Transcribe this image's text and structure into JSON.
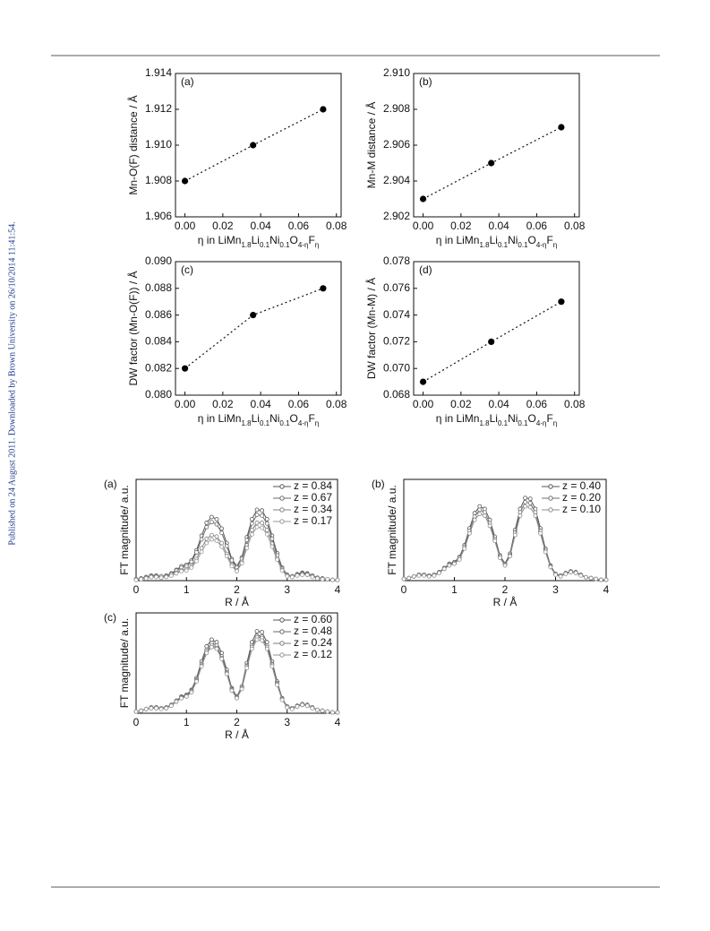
{
  "watermark": "Published on 24 August 2011. Downloaded by Brown University on 26/10/2014 11:41:54.",
  "chart_data": [
    {
      "type": "scatter",
      "panel_label": "(a)",
      "ylabel": "Mn-O(F) distance / Å",
      "xlabel": [
        "η in LiMn",
        "1.8",
        "Li",
        "0.1",
        "Ni",
        "0.1",
        "O",
        "4-η",
        "F",
        "η"
      ],
      "x": [
        0,
        0.036,
        0.073
      ],
      "series": [
        {
          "color": "#000000",
          "values": [
            1.908,
            1.91,
            1.912
          ]
        }
      ],
      "line": "dotted",
      "xlim": [
        -0.005,
        0.0825
      ],
      "xticks": [
        {
          "value": 0,
          "label": "0.00"
        },
        0.02,
        0.04,
        0.06,
        0.08
      ],
      "ylim": [
        1.906,
        1.914
      ],
      "yticks": [
        1.906,
        1.908,
        {
          "value": 1.91,
          "label": "1.910"
        },
        1.912,
        1.914
      ]
    },
    {
      "type": "scatter",
      "panel_label": "(b)",
      "ylabel": "Mn-M distance / Å",
      "xlabel": [
        "η in LiMn",
        "1.8",
        "Li",
        "0.1",
        "Ni",
        "0.1",
        "O",
        "4-η",
        "F",
        "η"
      ],
      "x": [
        0,
        0.036,
        0.073
      ],
      "series": [
        {
          "color": "#000000",
          "values": [
            2.903,
            2.905,
            2.907
          ]
        }
      ],
      "line": "dotted",
      "xlim": [
        -0.005,
        0.0825
      ],
      "xticks": [
        {
          "value": 0,
          "label": "0.00"
        },
        0.02,
        0.04,
        0.06,
        0.08
      ],
      "ylim": [
        2.902,
        2.91
      ],
      "yticks": [
        2.902,
        2.904,
        2.906,
        2.908,
        {
          "value": 2.91,
          "label": "2.910"
        }
      ]
    },
    {
      "type": "scatter",
      "panel_label": "(c)",
      "ylabel": "DW factor (Mn-O(F)) / Å",
      "xlabel": [
        "η in LiMn",
        "1.8",
        "Li",
        "0.1",
        "Ni",
        "0.1",
        "O",
        "4-η",
        "F",
        "η"
      ],
      "x": [
        0,
        0.036,
        0.073
      ],
      "series": [
        {
          "color": "#000000",
          "values": [
            0.082,
            0.086,
            0.088
          ]
        }
      ],
      "line": "dotted",
      "xlim": [
        -0.005,
        0.0825
      ],
      "xticks": [
        {
          "value": 0,
          "label": "0.00"
        },
        0.02,
        0.04,
        0.06,
        0.08
      ],
      "ylim": [
        0.08,
        0.09
      ],
      "yticks": [
        {
          "value": 0.08,
          "label": "0.080"
        },
        0.082,
        0.084,
        0.086,
        0.088,
        {
          "value": 0.09,
          "label": "0.090"
        }
      ]
    },
    {
      "type": "scatter",
      "panel_label": "(d)",
      "ylabel": "DW factor (Mn-M) / Å",
      "xlabel": [
        "η in LiMn",
        "1.8",
        "Li",
        "0.1",
        "Ni",
        "0.1",
        "O",
        "4-η",
        "F",
        "η"
      ],
      "x": [
        0,
        0.036,
        0.073
      ],
      "series": [
        {
          "color": "#000000",
          "values": [
            0.069,
            0.072,
            0.075
          ]
        }
      ],
      "line": "dotted",
      "xlim": [
        -0.005,
        0.0825
      ],
      "xticks": [
        {
          "value": 0,
          "label": "0.00"
        },
        0.02,
        0.04,
        0.06,
        0.08
      ],
      "ylim": [
        0.068,
        0.078
      ],
      "yticks": [
        0.068,
        {
          "value": 0.07,
          "label": "0.070"
        },
        0.072,
        0.074,
        0.076,
        0.078
      ]
    },
    {
      "type": "line",
      "panel_label": "(a)",
      "ylabel": "FT magnitude/ a.u.",
      "xlabel": "R / Å",
      "x": [
        0,
        0.1,
        0.2,
        0.3,
        0.4,
        0.5,
        0.6,
        0.7,
        0.8,
        0.9,
        1,
        1.1,
        1.2,
        1.3,
        1.4,
        1.5,
        1.6,
        1.7,
        1.8,
        1.9,
        2,
        2.1,
        2.2,
        2.3,
        2.4,
        2.5,
        2.6,
        2.7,
        2.8,
        2.9,
        3,
        3.1,
        3.2,
        3.3,
        3.4,
        3.5,
        3.6,
        3.7,
        3.8,
        3.9,
        4
      ],
      "xlim": [
        0,
        4
      ],
      "xticks": [
        0,
        1,
        2,
        3,
        4
      ],
      "ylim": [
        0,
        1.4
      ],
      "series": [
        {
          "name": "z = 0.84",
          "color": "#555555",
          "values": [
            0.02,
            0.03,
            0.05,
            0.07,
            0.07,
            0.06,
            0.07,
            0.1,
            0.15,
            0.2,
            0.22,
            0.28,
            0.42,
            0.62,
            0.8,
            0.88,
            0.85,
            0.72,
            0.52,
            0.3,
            0.2,
            0.32,
            0.6,
            0.85,
            0.98,
            0.97,
            0.85,
            0.62,
            0.38,
            0.18,
            0.08,
            0.06,
            0.09,
            0.11,
            0.1,
            0.07,
            0.04,
            0.03,
            0.02,
            0.01,
            0.01
          ]
        },
        {
          "name": "z = 0.67",
          "color": "#6a6a6a",
          "values": [
            0.02,
            0.03,
            0.05,
            0.06,
            0.06,
            0.06,
            0.06,
            0.09,
            0.14,
            0.18,
            0.2,
            0.26,
            0.39,
            0.57,
            0.74,
            0.81,
            0.78,
            0.66,
            0.48,
            0.28,
            0.18,
            0.3,
            0.56,
            0.79,
            0.91,
            0.9,
            0.79,
            0.58,
            0.35,
            0.17,
            0.07,
            0.06,
            0.08,
            0.1,
            0.09,
            0.07,
            0.04,
            0.03,
            0.02,
            0.01,
            0.01
          ]
        },
        {
          "name": "z = 0.34",
          "color": "#808080",
          "values": [
            0.01,
            0.02,
            0.04,
            0.05,
            0.05,
            0.04,
            0.05,
            0.07,
            0.11,
            0.14,
            0.16,
            0.2,
            0.3,
            0.45,
            0.58,
            0.63,
            0.61,
            0.52,
            0.37,
            0.22,
            0.14,
            0.26,
            0.49,
            0.7,
            0.8,
            0.8,
            0.7,
            0.51,
            0.31,
            0.15,
            0.07,
            0.05,
            0.07,
            0.09,
            0.08,
            0.06,
            0.03,
            0.02,
            0.02,
            0.01,
            0.01
          ]
        },
        {
          "name": "z = 0.17",
          "color": "#999999",
          "values": [
            0.01,
            0.02,
            0.03,
            0.05,
            0.05,
            0.04,
            0.05,
            0.07,
            0.1,
            0.13,
            0.14,
            0.18,
            0.27,
            0.4,
            0.52,
            0.57,
            0.55,
            0.47,
            0.34,
            0.2,
            0.13,
            0.24,
            0.45,
            0.64,
            0.74,
            0.73,
            0.64,
            0.47,
            0.29,
            0.14,
            0.06,
            0.05,
            0.07,
            0.08,
            0.08,
            0.05,
            0.03,
            0.02,
            0.02,
            0.01,
            0.01
          ]
        }
      ]
    },
    {
      "type": "line",
      "panel_label": "(b)",
      "ylabel": "FT magnitude/ a.u.",
      "xlabel": "R / Å",
      "x": [
        0,
        0.1,
        0.2,
        0.3,
        0.4,
        0.5,
        0.6,
        0.7,
        0.8,
        0.9,
        1,
        1.1,
        1.2,
        1.3,
        1.4,
        1.5,
        1.6,
        1.7,
        1.8,
        1.9,
        2,
        2.1,
        2.2,
        2.3,
        2.4,
        2.5,
        2.6,
        2.7,
        2.8,
        2.9,
        3,
        3.1,
        3.2,
        3.3,
        3.4,
        3.5,
        3.6,
        3.7,
        3.8,
        3.9,
        4
      ],
      "xlim": [
        0,
        4
      ],
      "xticks": [
        0,
        1,
        2,
        3,
        4
      ],
      "ylim": [
        0,
        1.2
      ],
      "series": [
        {
          "name": "z = 0.40",
          "color": "#555555",
          "values": [
            0.02,
            0.03,
            0.05,
            0.07,
            0.07,
            0.06,
            0.07,
            0.1,
            0.15,
            0.2,
            0.22,
            0.28,
            0.42,
            0.62,
            0.8,
            0.88,
            0.85,
            0.72,
            0.52,
            0.3,
            0.2,
            0.32,
            0.6,
            0.85,
            0.98,
            0.97,
            0.85,
            0.62,
            0.38,
            0.18,
            0.08,
            0.06,
            0.09,
            0.11,
            0.1,
            0.07,
            0.04,
            0.03,
            0.02,
            0.01,
            0.01
          ]
        },
        {
          "name": "z = 0.20",
          "color": "#707070",
          "values": [
            0.02,
            0.03,
            0.05,
            0.07,
            0.07,
            0.06,
            0.07,
            0.1,
            0.14,
            0.19,
            0.21,
            0.27,
            0.4,
            0.59,
            0.76,
            0.84,
            0.81,
            0.68,
            0.49,
            0.29,
            0.19,
            0.3,
            0.57,
            0.81,
            0.93,
            0.92,
            0.81,
            0.59,
            0.36,
            0.17,
            0.08,
            0.06,
            0.09,
            0.1,
            0.1,
            0.07,
            0.04,
            0.03,
            0.02,
            0.01,
            0.01
          ]
        },
        {
          "name": "z = 0.10",
          "color": "#8c8c8c",
          "values": [
            0.02,
            0.03,
            0.05,
            0.06,
            0.06,
            0.05,
            0.06,
            0.09,
            0.14,
            0.18,
            0.2,
            0.25,
            0.38,
            0.56,
            0.72,
            0.79,
            0.77,
            0.65,
            0.47,
            0.27,
            0.18,
            0.29,
            0.54,
            0.77,
            0.88,
            0.87,
            0.77,
            0.56,
            0.34,
            0.16,
            0.07,
            0.05,
            0.08,
            0.1,
            0.09,
            0.06,
            0.04,
            0.03,
            0.02,
            0.01,
            0.01
          ]
        }
      ]
    },
    {
      "type": "line",
      "panel_label": "(c)",
      "ylabel": "FT magnitude/ a.u.",
      "xlabel": "R / Å",
      "x": [
        0,
        0.1,
        0.2,
        0.3,
        0.4,
        0.5,
        0.6,
        0.7,
        0.8,
        0.9,
        1,
        1.1,
        1.2,
        1.3,
        1.4,
        1.5,
        1.6,
        1.7,
        1.8,
        1.9,
        2,
        2.1,
        2.2,
        2.3,
        2.4,
        2.5,
        2.6,
        2.7,
        2.8,
        2.9,
        3,
        3.1,
        3.2,
        3.3,
        3.4,
        3.5,
        3.6,
        3.7,
        3.8,
        3.9,
        4
      ],
      "xlim": [
        0,
        4
      ],
      "xticks": [
        0,
        1,
        2,
        3,
        4
      ],
      "ylim": [
        0,
        1.2
      ],
      "series": [
        {
          "name": "z = 0.60",
          "color": "#555555",
          "values": [
            0.02,
            0.03,
            0.05,
            0.07,
            0.07,
            0.06,
            0.07,
            0.1,
            0.15,
            0.2,
            0.22,
            0.28,
            0.42,
            0.62,
            0.8,
            0.88,
            0.85,
            0.72,
            0.52,
            0.3,
            0.2,
            0.32,
            0.6,
            0.85,
            0.98,
            0.97,
            0.85,
            0.62,
            0.38,
            0.18,
            0.08,
            0.06,
            0.09,
            0.11,
            0.1,
            0.07,
            0.04,
            0.03,
            0.02,
            0.01,
            0.01
          ]
        },
        {
          "name": "z = 0.48",
          "color": "#686868",
          "values": [
            0.02,
            0.03,
            0.05,
            0.07,
            0.07,
            0.06,
            0.07,
            0.1,
            0.14,
            0.19,
            0.21,
            0.27,
            0.4,
            0.59,
            0.76,
            0.84,
            0.81,
            0.68,
            0.49,
            0.29,
            0.19,
            0.3,
            0.57,
            0.81,
            0.93,
            0.92,
            0.81,
            0.59,
            0.36,
            0.17,
            0.08,
            0.06,
            0.09,
            0.1,
            0.1,
            0.07,
            0.04,
            0.03,
            0.02,
            0.01,
            0.01
          ]
        },
        {
          "name": "z = 0.24",
          "color": "#7c7c7c",
          "values": [
            0.02,
            0.03,
            0.05,
            0.06,
            0.06,
            0.06,
            0.06,
            0.09,
            0.14,
            0.18,
            0.2,
            0.26,
            0.39,
            0.57,
            0.74,
            0.81,
            0.78,
            0.66,
            0.48,
            0.28,
            0.18,
            0.3,
            0.56,
            0.79,
            0.91,
            0.9,
            0.79,
            0.58,
            0.35,
            0.17,
            0.07,
            0.06,
            0.08,
            0.1,
            0.09,
            0.07,
            0.04,
            0.03,
            0.02,
            0.01,
            0.01
          ]
        },
        {
          "name": "z = 0.12",
          "color": "#939393",
          "values": [
            0.02,
            0.03,
            0.05,
            0.06,
            0.06,
            0.05,
            0.06,
            0.09,
            0.14,
            0.18,
            0.2,
            0.25,
            0.38,
            0.56,
            0.72,
            0.79,
            0.77,
            0.65,
            0.47,
            0.27,
            0.18,
            0.29,
            0.54,
            0.77,
            0.88,
            0.87,
            0.77,
            0.56,
            0.34,
            0.16,
            0.07,
            0.05,
            0.08,
            0.1,
            0.09,
            0.06,
            0.04,
            0.03,
            0.02,
            0.01,
            0.01
          ]
        }
      ]
    }
  ]
}
